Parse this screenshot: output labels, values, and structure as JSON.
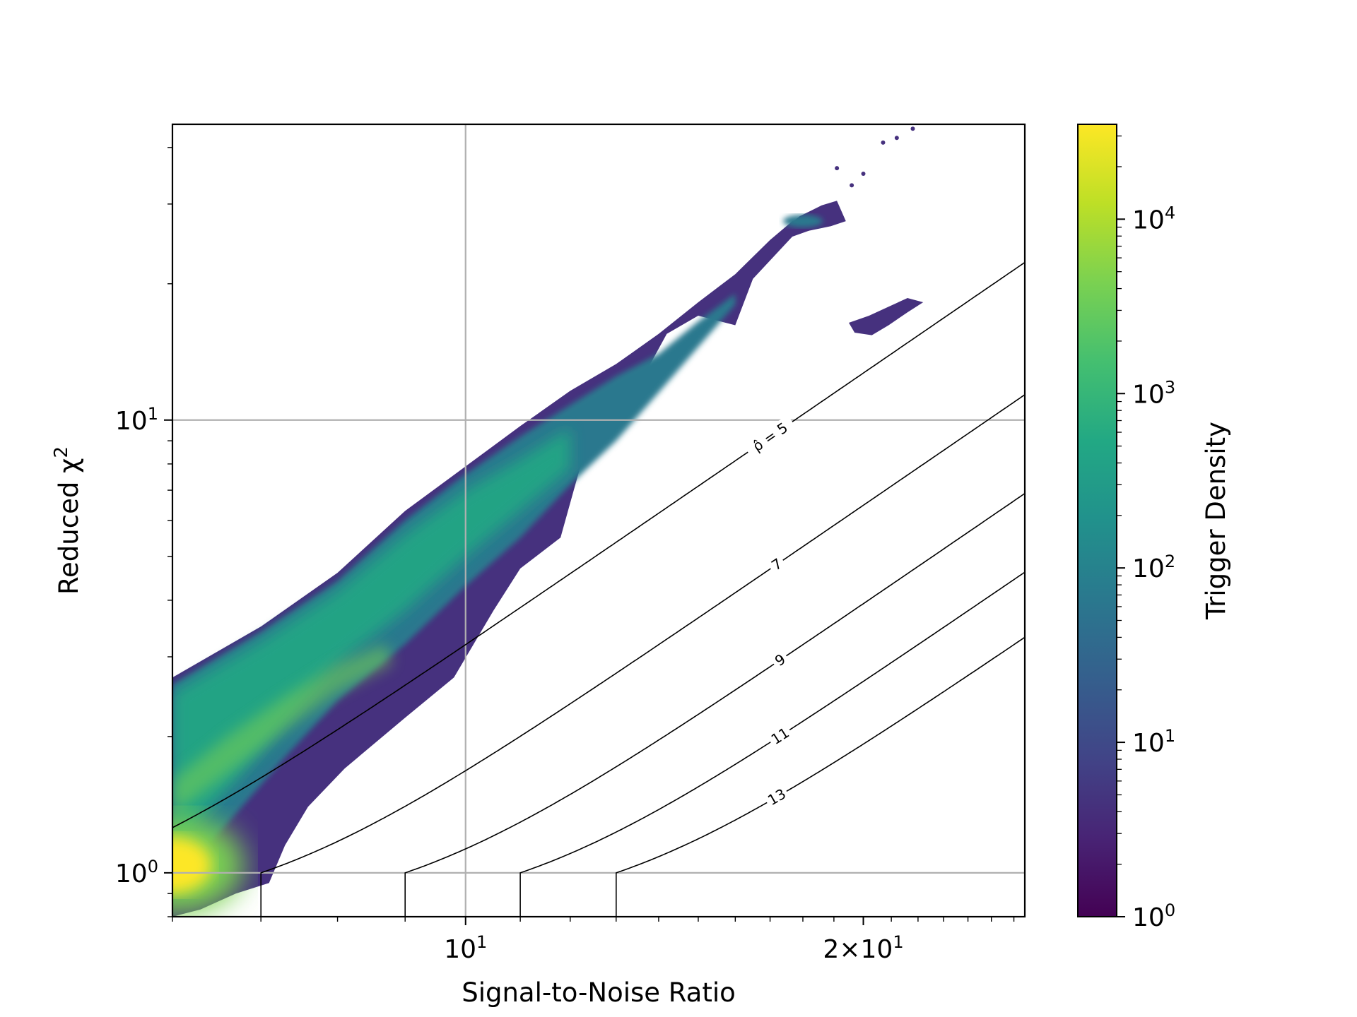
{
  "chart_data": {
    "type": "heatmap",
    "subtype": "hexbin-density",
    "title": "",
    "xlabel": "Signal-to-Noise Ratio",
    "ylabel": "Reduced χ²",
    "x_scale": "log",
    "y_scale": "log",
    "xlim": [
      6,
      26.5
    ],
    "ylim": [
      0.8,
      45
    ],
    "grid": true,
    "x_ticks": [
      {
        "value": 10,
        "base": "10",
        "exp": "1"
      },
      {
        "value": 20,
        "base": "2×10",
        "exp": "1"
      }
    ],
    "y_ticks": [
      {
        "value": 1,
        "base": "10",
        "exp": "0"
      },
      {
        "value": 10,
        "base": "10",
        "exp": "1"
      }
    ],
    "colorbar": {
      "label": "Trigger Density",
      "scale": "log",
      "colormap": "viridis",
      "range": [
        1,
        35000
      ],
      "ticks": [
        {
          "value": 1,
          "base": "10",
          "exp": "0"
        },
        {
          "value": 10,
          "base": "10",
          "exp": "1"
        },
        {
          "value": 100,
          "base": "10",
          "exp": "2"
        },
        {
          "value": 1000,
          "base": "10",
          "exp": "3"
        },
        {
          "value": 10000,
          "base": "10",
          "exp": "4"
        }
      ]
    },
    "contours": [
      {
        "label": "ρ̂ = 5",
        "value": 5,
        "label_x": 17.0
      },
      {
        "label": "7",
        "value": 7,
        "label_x": 17.2
      },
      {
        "label": "9",
        "value": 9,
        "label_x": 17.3
      },
      {
        "label": "11",
        "value": 11,
        "label_x": 17.3
      },
      {
        "label": "13",
        "value": 13,
        "label_x": 17.2
      }
    ],
    "density_regions": [
      {
        "name": "main-band",
        "x_range": [
          6,
          19
        ],
        "density_peak": 30000,
        "peak_at": {
          "x": 6.05,
          "y": 1.03
        }
      },
      {
        "name": "upper-cluster",
        "x_range": [
          17.3,
          19.4
        ],
        "y_range": [
          25,
          30
        ],
        "density": 150
      },
      {
        "name": "isolated-cluster",
        "x_range": [
          19.5,
          22
        ],
        "y_range": [
          15,
          18.5
        ],
        "density": 20
      }
    ],
    "colors": {
      "contour": "#000000",
      "grid": "#b0b0b0"
    }
  }
}
